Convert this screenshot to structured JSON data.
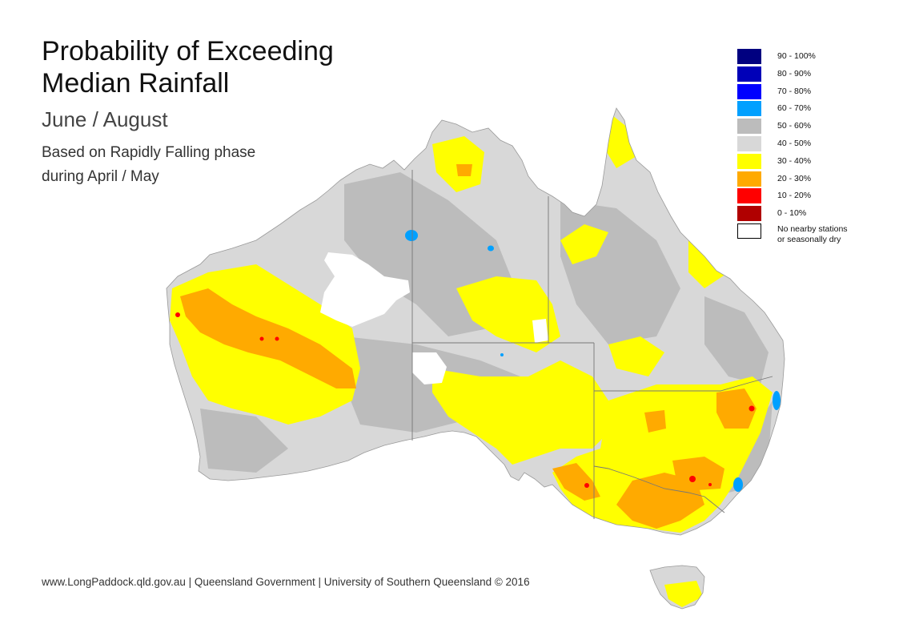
{
  "title_lines": [
    "Probability of Exceeding",
    "Median Rainfall"
  ],
  "period": "June / August",
  "basis_lines": [
    "Based on Rapidly Falling phase",
    "during April / May"
  ],
  "footer": "www.LongPaddock.qld.gov.au | Queensland Government | University of Southern Queensland © 2016",
  "legend": [
    {
      "label": "90 - 100%",
      "color": "#000080"
    },
    {
      "label": "80 - 90%",
      "color": "#0000b8"
    },
    {
      "label": "70 - 80%",
      "color": "#0000ff"
    },
    {
      "label": "60 - 70%",
      "color": "#00a0ff"
    },
    {
      "label": "50 - 60%",
      "color": "#bcbcbc"
    },
    {
      "label": "40 - 50%",
      "color": "#d8d8d8"
    },
    {
      "label": "30 - 40%",
      "color": "#ffff00"
    },
    {
      "label": "20 - 30%",
      "color": "#ffaa00"
    },
    {
      "label": "10 - 20%",
      "color": "#ff0000"
    },
    {
      "label": "0 - 10%",
      "color": "#b00000"
    },
    {
      "label": "No nearby stations\nor seasonally dry",
      "color": "#ffffff"
    }
  ],
  "map_colors": {
    "land_light": "#d8d8d8",
    "land_dark": "#bcbcbc",
    "yellow": "#ffff00",
    "orange": "#ffaa00",
    "red": "#ff0000",
    "blue": "#00a0ff",
    "no_data": "#ffffff",
    "borders": "#777777"
  }
}
